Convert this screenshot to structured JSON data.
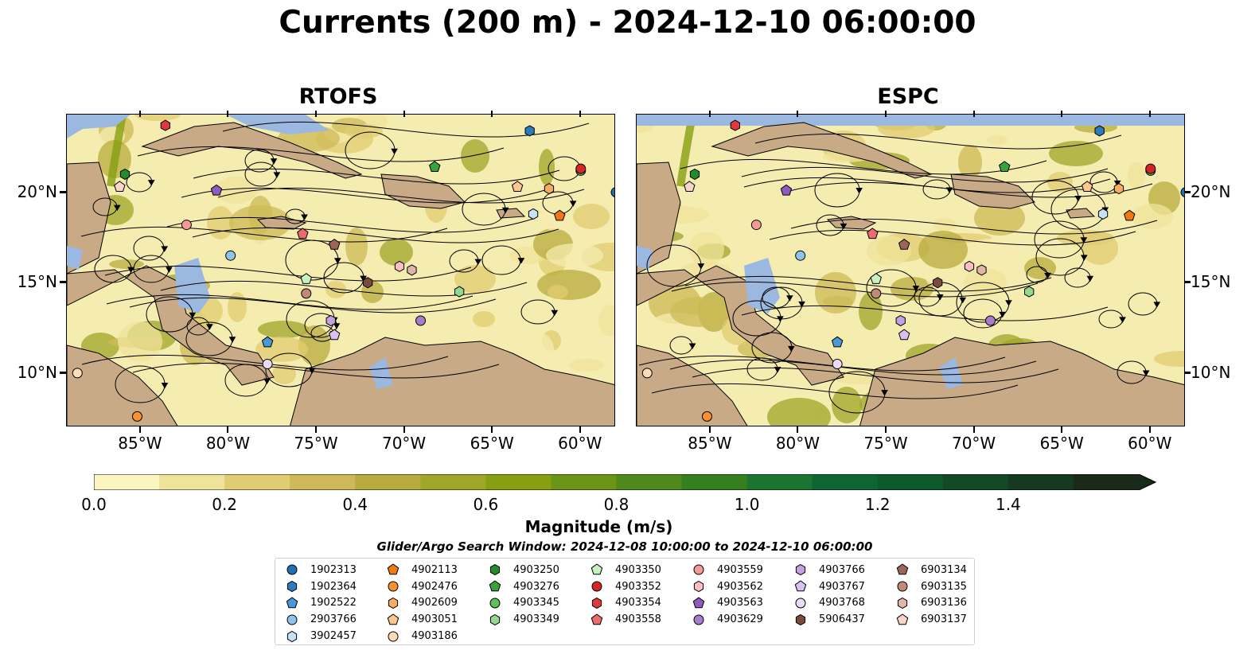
{
  "title": "Currents (200 m) - 2024-12-10 06:00:00",
  "panels": [
    {
      "title": "RTOFS"
    },
    {
      "title": "ESPC"
    }
  ],
  "axes": {
    "lon_ticks": [
      "85°W",
      "80°W",
      "75°W",
      "70°W",
      "65°W",
      "60°W"
    ],
    "lat_ticks": [
      "20°N",
      "15°N",
      "10°N"
    ]
  },
  "colorbar": {
    "label": "Magnitude (m/s)",
    "ticks": [
      "0.0",
      "0.2",
      "0.4",
      "0.6",
      "0.8",
      "1.0",
      "1.2",
      "1.4"
    ],
    "colors": [
      "#fbf5c0",
      "#efe39b",
      "#e0cc72",
      "#cdb957",
      "#b8ab3d",
      "#a0a628",
      "#86a012",
      "#6b9516",
      "#4f891b",
      "#348020",
      "#1d7330",
      "#0f6530",
      "#0e5a2a",
      "#124a24",
      "#163a1f",
      "#1a2a18"
    ]
  },
  "search_window": "Glider/Argo Search Window: 2024-12-08 10:00:00 to 2024-12-10 06:00:00",
  "legend": {
    "columns": [
      [
        {
          "id": "1902313",
          "shape": "circle",
          "color": "#1f6fb4"
        },
        {
          "id": "1902364",
          "shape": "hexagon",
          "color": "#2a7bbf"
        },
        {
          "id": "1902522",
          "shape": "pentagon",
          "color": "#4a98d4"
        },
        {
          "id": "2903766",
          "shape": "circle",
          "color": "#8fc3ea"
        },
        {
          "id": "3902457",
          "shape": "hexagon",
          "color": "#c6e2f7"
        }
      ],
      [
        {
          "id": "4902113",
          "shape": "pentagon",
          "color": "#f07a10"
        },
        {
          "id": "4902476",
          "shape": "circle",
          "color": "#f7922e"
        },
        {
          "id": "4902609",
          "shape": "hexagon",
          "color": "#f9ac5f"
        },
        {
          "id": "4903051",
          "shape": "pentagon",
          "color": "#fcc690"
        },
        {
          "id": "4903186",
          "shape": "circle",
          "color": "#fddcbc"
        }
      ],
      [
        {
          "id": "4903250",
          "shape": "hexagon",
          "color": "#238b2a"
        },
        {
          "id": "4903276",
          "shape": "pentagon",
          "color": "#37a33d"
        },
        {
          "id": "4903345",
          "shape": "circle",
          "color": "#5cc05a"
        },
        {
          "id": "4903349",
          "shape": "hexagon",
          "color": "#93d88c"
        }
      ],
      [
        {
          "id": "4903350",
          "shape": "pentagon",
          "color": "#c7f2c0"
        },
        {
          "id": "4903352",
          "shape": "circle",
          "color": "#d62526"
        },
        {
          "id": "4903354",
          "shape": "hexagon",
          "color": "#e0393b"
        },
        {
          "id": "4903558",
          "shape": "pentagon",
          "color": "#ec6b6d"
        }
      ],
      [
        {
          "id": "4903559",
          "shape": "circle",
          "color": "#f29a98"
        },
        {
          "id": "4903562",
          "shape": "hexagon",
          "color": "#f8c1c0"
        },
        {
          "id": "4903563",
          "shape": "pentagon",
          "color": "#8e5bbf"
        },
        {
          "id": "4903629",
          "shape": "circle",
          "color": "#a77ccd"
        }
      ],
      [
        {
          "id": "4903766",
          "shape": "hexagon",
          "color": "#c2a2e0"
        },
        {
          "id": "4903767",
          "shape": "pentagon",
          "color": "#d8c1ee"
        },
        {
          "id": "4903768",
          "shape": "circle",
          "color": "#eadcf7"
        },
        {
          "id": "5906437",
          "shape": "hexagon",
          "color": "#7b4a3b"
        }
      ],
      [
        {
          "id": "6903134",
          "shape": "pentagon",
          "color": "#9b6657"
        },
        {
          "id": "6903135",
          "shape": "circle",
          "color": "#c08a79"
        },
        {
          "id": "6903136",
          "shape": "hexagon",
          "color": "#e0b6a6"
        },
        {
          "id": "6903137",
          "shape": "pentagon",
          "color": "#f6d6c8"
        }
      ]
    ]
  },
  "float_markers": [
    {
      "id": "1902313",
      "lon": -58.0,
      "lat": 20.0
    },
    {
      "id": "1902364",
      "lon": -62.9,
      "lat": 23.4
    },
    {
      "id": "1902522",
      "lon": -77.8,
      "lat": 11.7
    },
    {
      "id": "2903766",
      "lon": -79.9,
      "lat": 16.5
    },
    {
      "id": "3902457",
      "lon": -62.7,
      "lat": 18.8
    },
    {
      "id": "4902113",
      "lon": -61.2,
      "lat": 18.7
    },
    {
      "id": "4902476",
      "lon": -85.2,
      "lat": 7.6
    },
    {
      "id": "4902609",
      "lon": -61.8,
      "lat": 20.2
    },
    {
      "id": "4903051",
      "lon": -63.6,
      "lat": 20.3
    },
    {
      "id": "4903186",
      "lon": -88.6,
      "lat": 10.0
    },
    {
      "id": "4903250",
      "lon": -85.9,
      "lat": 21.0
    },
    {
      "id": "4903276",
      "lon": -68.3,
      "lat": 21.4
    },
    {
      "id": "4903345",
      "lon": -60.0,
      "lat": 21.2
    },
    {
      "id": "4903349",
      "lon": -66.9,
      "lat": 14.5
    },
    {
      "id": "4903350",
      "lon": -75.6,
      "lat": 15.2
    },
    {
      "id": "4903352",
      "lon": -60.0,
      "lat": 21.3
    },
    {
      "id": "4903354",
      "lon": -83.6,
      "lat": 23.7
    },
    {
      "id": "4903558",
      "lon": -75.8,
      "lat": 17.7
    },
    {
      "id": "4903559",
      "lon": -82.4,
      "lat": 18.2
    },
    {
      "id": "4903562",
      "lon": -70.3,
      "lat": 15.9
    },
    {
      "id": "4903563",
      "lon": -80.7,
      "lat": 20.1
    },
    {
      "id": "4903629",
      "lon": -69.1,
      "lat": 12.9
    },
    {
      "id": "4903766",
      "lon": -74.2,
      "lat": 12.9
    },
    {
      "id": "4903767",
      "lon": -74.0,
      "lat": 12.1
    },
    {
      "id": "4903768",
      "lon": -77.8,
      "lat": 10.5
    },
    {
      "id": "5906437",
      "lon": -72.1,
      "lat": 15.0
    },
    {
      "id": "6903134",
      "lon": -74.0,
      "lat": 17.1
    },
    {
      "id": "6903135",
      "lon": -75.6,
      "lat": 14.4
    },
    {
      "id": "6903136",
      "lon": -69.6,
      "lat": 15.7
    },
    {
      "id": "6903137",
      "lon": -86.2,
      "lat": 20.3
    }
  ]
}
